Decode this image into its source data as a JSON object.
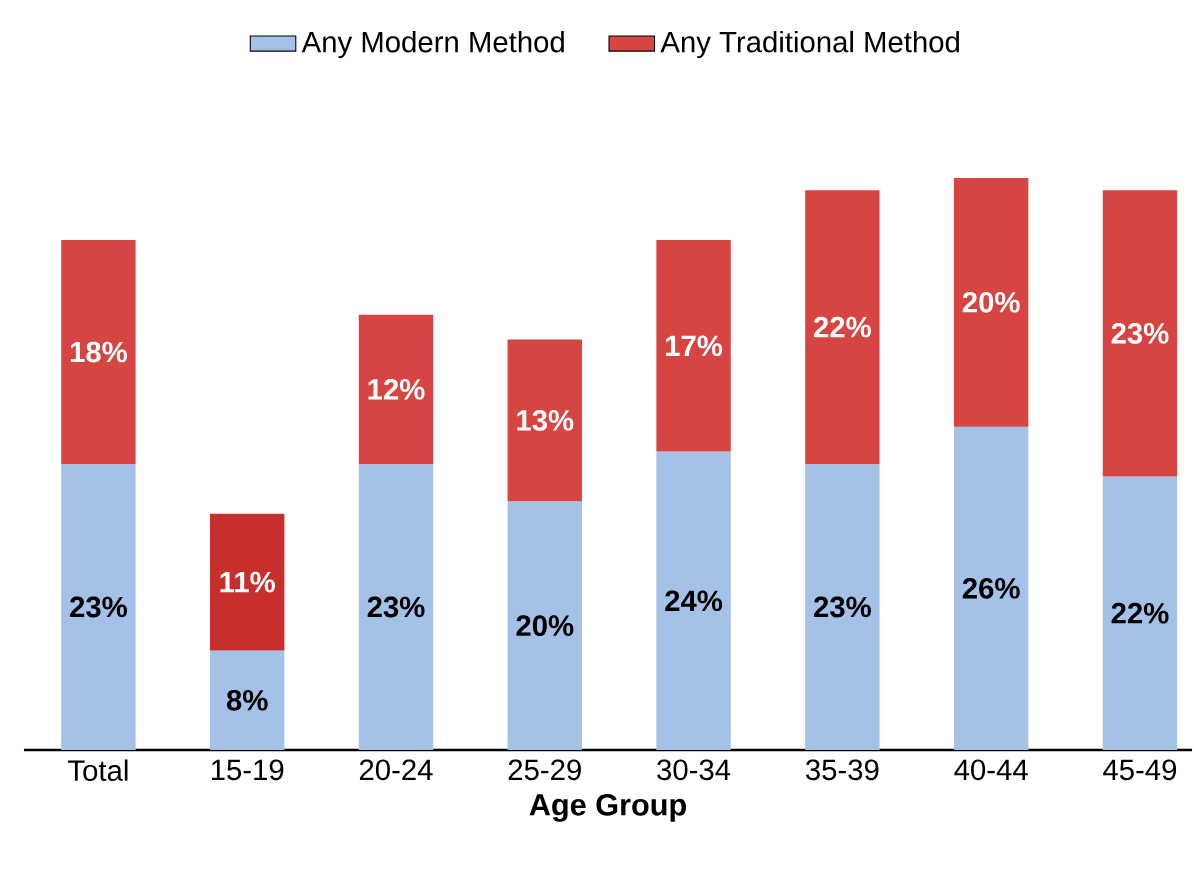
{
  "chart_data": {
    "type": "bar",
    "stacked": true,
    "xlabel": "Age Group",
    "legend": "top",
    "categories": [
      "Total",
      "15-19",
      "20-24",
      "25-29",
      "30-34",
      "35-39",
      "40-44",
      "45-49"
    ],
    "series": [
      {
        "name": "Any Modern Method",
        "color": "#a4c2e8",
        "values": [
          23,
          8,
          23,
          20,
          24,
          23,
          26,
          22
        ],
        "value_labels": [
          "23%",
          "8%",
          "23%",
          "20%",
          "24%",
          "23%",
          "26%",
          "22%"
        ]
      },
      {
        "name": "Any Traditional Method",
        "color": "#d64541",
        "colors": [
          "#d64541",
          "#c62f2c",
          "#d64541",
          "#d64541",
          "#d64541",
          "#d64541",
          "#d64541",
          "#d64541"
        ],
        "values": [
          18,
          11,
          12,
          13,
          17,
          22,
          20,
          23
        ],
        "value_labels": [
          "18%",
          "11%",
          "12%",
          "13%",
          "17%",
          "22%",
          "20%",
          "23%"
        ]
      }
    ]
  }
}
